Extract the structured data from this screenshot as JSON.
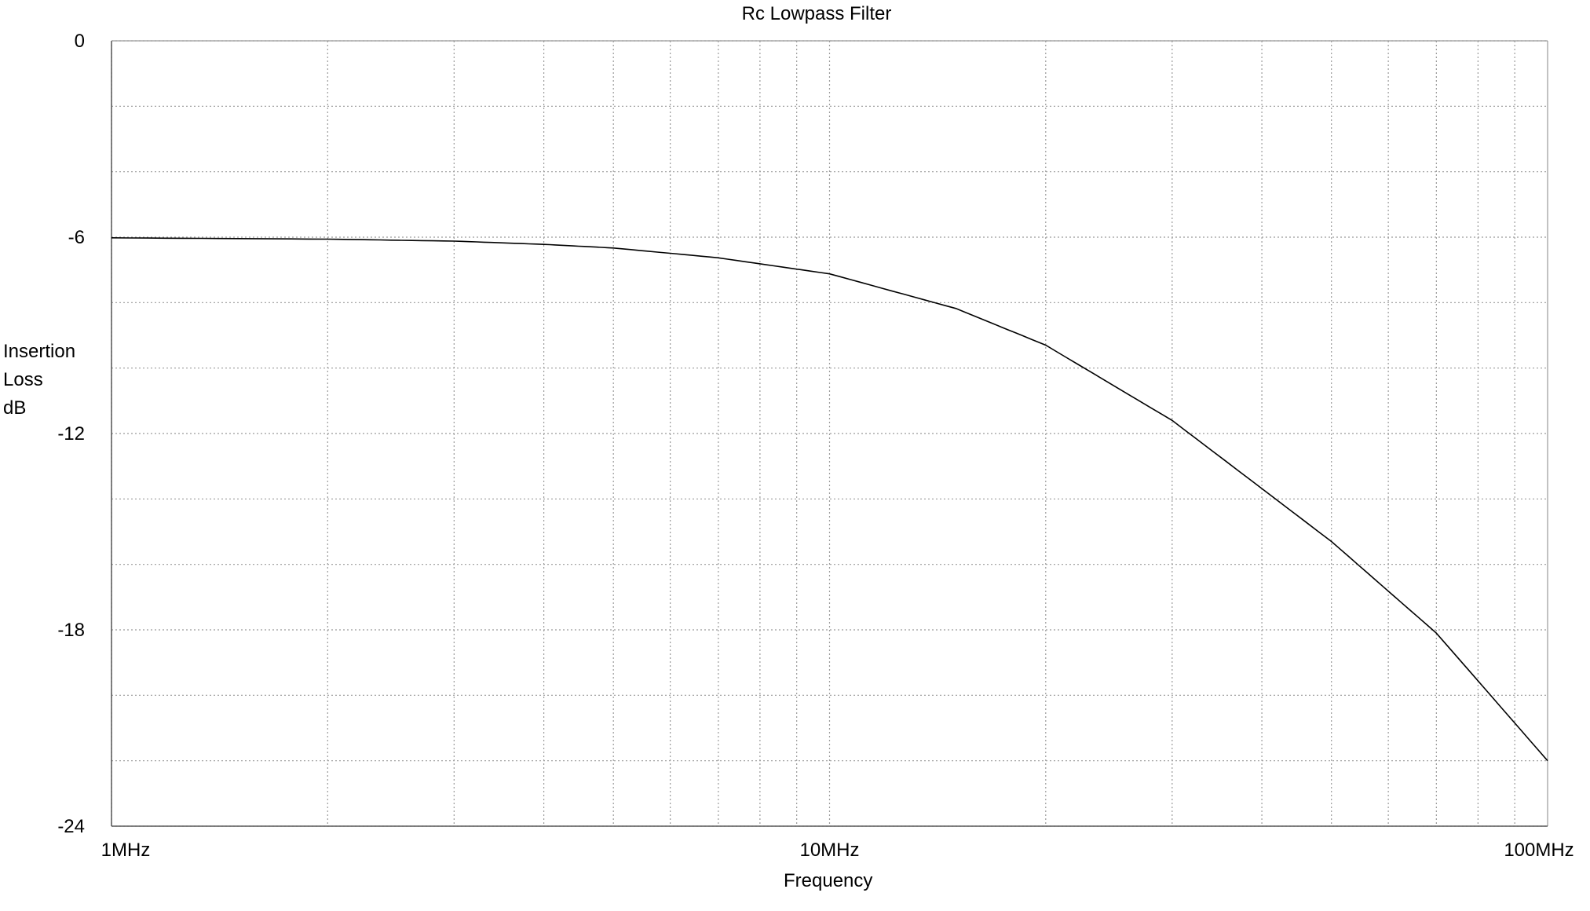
{
  "chart_data": {
    "type": "line",
    "title": "Rc Lowpass Filter",
    "xlabel": "Frequency",
    "ylabel": [
      "Insertion",
      "Loss",
      "dB"
    ],
    "xscale": "log",
    "xlim": [
      1,
      100
    ],
    "ylim": [
      -24,
      0
    ],
    "x_ticks": [
      {
        "value": 1,
        "label": "1MHz"
      },
      {
        "value": 10,
        "label": "10MHz"
      },
      {
        "value": 100,
        "label": "100MHz"
      }
    ],
    "y_ticks": [
      {
        "value": 0,
        "label": "0"
      },
      {
        "value": -6,
        "label": "-6"
      },
      {
        "value": -12,
        "label": "-12"
      },
      {
        "value": -18,
        "label": "-18"
      },
      {
        "value": -24,
        "label": "-24"
      }
    ],
    "y_minor_step": 2,
    "grid": true,
    "series": [
      {
        "color": "#000000",
        "x": [
          1,
          2,
          3,
          4,
          5,
          7,
          10,
          15,
          20,
          30,
          50,
          70,
          100
        ],
        "values": [
          -6.02,
          -6.06,
          -6.12,
          -6.22,
          -6.33,
          -6.63,
          -7.12,
          -8.18,
          -9.3,
          -11.6,
          -15.3,
          -18.1,
          -22.0
        ]
      }
    ]
  }
}
